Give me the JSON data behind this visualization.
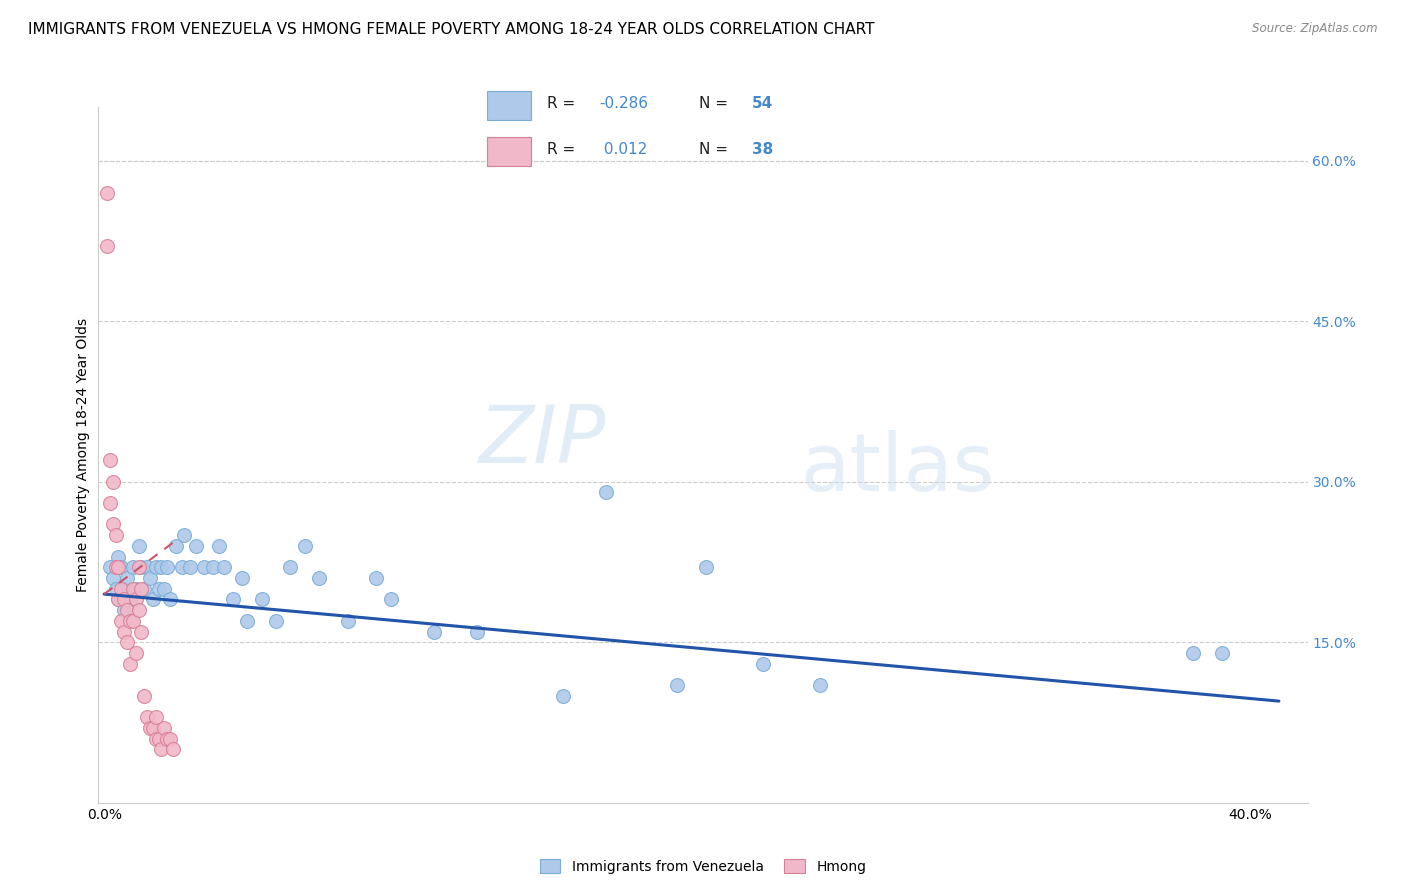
{
  "title": "IMMIGRANTS FROM VENEZUELA VS HMONG FEMALE POVERTY AMONG 18-24 YEAR OLDS CORRELATION CHART",
  "source": "Source: ZipAtlas.com",
  "ylabel": "Female Poverty Among 18-24 Year Olds",
  "watermark": "ZIPatlas",
  "ylim": [
    0.0,
    0.65
  ],
  "xlim": [
    -0.002,
    0.42
  ],
  "ylabel_vals_right": [
    0.6,
    0.45,
    0.3,
    0.15
  ],
  "ylabel_ticks_right": [
    "60.0%",
    "45.0%",
    "30.0%",
    "15.0%"
  ],
  "xlabel_vals": [
    0.0,
    0.1,
    0.2,
    0.3,
    0.4
  ],
  "xlabel_ticks": [
    "0.0%",
    "",
    "",
    "",
    "40.0%"
  ],
  "blue_scatter_x": [
    0.002,
    0.003,
    0.004,
    0.005,
    0.005,
    0.006,
    0.007,
    0.007,
    0.008,
    0.009,
    0.01,
    0.011,
    0.012,
    0.013,
    0.014,
    0.015,
    0.016,
    0.017,
    0.018,
    0.019,
    0.02,
    0.021,
    0.022,
    0.023,
    0.025,
    0.027,
    0.028,
    0.03,
    0.032,
    0.035,
    0.038,
    0.04,
    0.042,
    0.045,
    0.048,
    0.05,
    0.055,
    0.06,
    0.065,
    0.07,
    0.075,
    0.085,
    0.095,
    0.1,
    0.115,
    0.13,
    0.16,
    0.175,
    0.2,
    0.21,
    0.23,
    0.25,
    0.38,
    0.39
  ],
  "blue_scatter_y": [
    0.22,
    0.21,
    0.2,
    0.23,
    0.19,
    0.22,
    0.2,
    0.18,
    0.21,
    0.19,
    0.22,
    0.2,
    0.24,
    0.22,
    0.2,
    0.22,
    0.21,
    0.19,
    0.22,
    0.2,
    0.22,
    0.2,
    0.22,
    0.19,
    0.24,
    0.22,
    0.25,
    0.22,
    0.24,
    0.22,
    0.22,
    0.24,
    0.22,
    0.19,
    0.21,
    0.17,
    0.19,
    0.17,
    0.22,
    0.24,
    0.21,
    0.17,
    0.21,
    0.19,
    0.16,
    0.16,
    0.1,
    0.29,
    0.11,
    0.22,
    0.13,
    0.11,
    0.14,
    0.14
  ],
  "pink_scatter_x": [
    0.001,
    0.001,
    0.002,
    0.002,
    0.003,
    0.003,
    0.004,
    0.004,
    0.005,
    0.005,
    0.006,
    0.006,
    0.007,
    0.007,
    0.008,
    0.008,
    0.009,
    0.009,
    0.01,
    0.01,
    0.011,
    0.011,
    0.012,
    0.012,
    0.013,
    0.013,
    0.014,
    0.015,
    0.016,
    0.017,
    0.018,
    0.018,
    0.019,
    0.02,
    0.021,
    0.022,
    0.023,
    0.024
  ],
  "pink_scatter_y": [
    0.57,
    0.52,
    0.32,
    0.28,
    0.3,
    0.26,
    0.25,
    0.22,
    0.22,
    0.19,
    0.2,
    0.17,
    0.19,
    0.16,
    0.18,
    0.15,
    0.17,
    0.13,
    0.2,
    0.17,
    0.19,
    0.14,
    0.22,
    0.18,
    0.2,
    0.16,
    0.1,
    0.08,
    0.07,
    0.07,
    0.08,
    0.06,
    0.06,
    0.05,
    0.07,
    0.06,
    0.06,
    0.05
  ],
  "blue_line_x": [
    0.0,
    0.41
  ],
  "blue_line_y": [
    0.195,
    0.095
  ],
  "pink_line_x": [
    0.0,
    0.025
  ],
  "pink_line_y": [
    0.195,
    0.245
  ],
  "scatter_size": 100,
  "blue_color": "#aec9ea",
  "blue_edge_color": "#7aadd6",
  "pink_color": "#f0b8c8",
  "pink_edge_color": "#d98098",
  "blue_line_color": "#2255aa",
  "pink_line_color": "#cc5566",
  "grid_color": "#cccccc",
  "background_color": "#ffffff",
  "title_fontsize": 11,
  "axis_label_fontsize": 10,
  "tick_fontsize": 10,
  "right_tick_color": "#4488cc",
  "legend_r1": "R = -0.286",
  "legend_n1": "N = 54",
  "legend_r2": "R =  0.012",
  "legend_n2": "N = 38"
}
